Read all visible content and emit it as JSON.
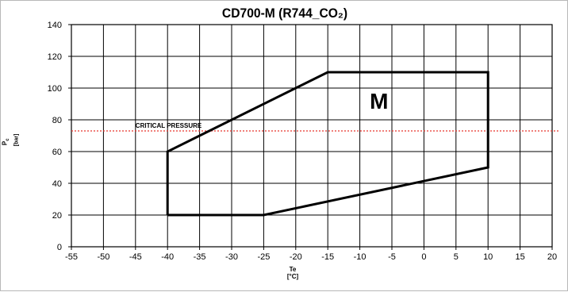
{
  "chart_data": {
    "type": "line",
    "title": "CD700-M (R744_CO₂)",
    "xlabel": "Te",
    "xunit": "[°C]",
    "ylabel": "P",
    "ysub": "c",
    "yunit": "[bar]",
    "xlim": [
      -55,
      20
    ],
    "ylim": [
      0,
      140
    ],
    "xticks": [
      -55,
      -50,
      -45,
      -40,
      -35,
      -30,
      -25,
      -20,
      -15,
      -10,
      -5,
      0,
      5,
      10,
      15,
      20
    ],
    "yticks": [
      0,
      20,
      40,
      60,
      80,
      100,
      120,
      140
    ],
    "grid": true,
    "series": [
      {
        "values": [
          {
            "x": -40,
            "y": 20
          },
          {
            "x": -40,
            "y": 60
          },
          {
            "x": -15,
            "y": 110
          },
          {
            "x": 10,
            "y": 110
          },
          {
            "x": 10,
            "y": 50
          },
          {
            "x": -25,
            "y": 20
          },
          {
            "x": -40,
            "y": 20
          }
        ],
        "color": "#000000"
      }
    ],
    "reference_line": {
      "label": "CRITICAL PRESSURE",
      "y": 73,
      "color": "#e8342c",
      "style": "dotted"
    },
    "region_label": {
      "text": "M",
      "x": -7,
      "y": 87
    }
  }
}
